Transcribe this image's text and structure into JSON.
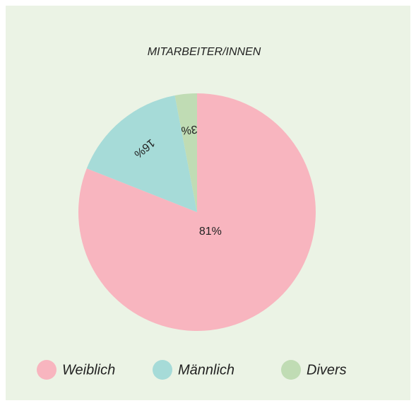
{
  "chart_data": {
    "type": "pie",
    "title": "MITARBEITER/INNEN",
    "categories": [
      "Weiblich",
      "Männlich",
      "Divers"
    ],
    "values": [
      81,
      16,
      3
    ],
    "value_labels": [
      "81%",
      "16%",
      "3%"
    ],
    "colors": [
      "#f8b5bf",
      "#a6dbd8",
      "#c0dcb4"
    ]
  }
}
